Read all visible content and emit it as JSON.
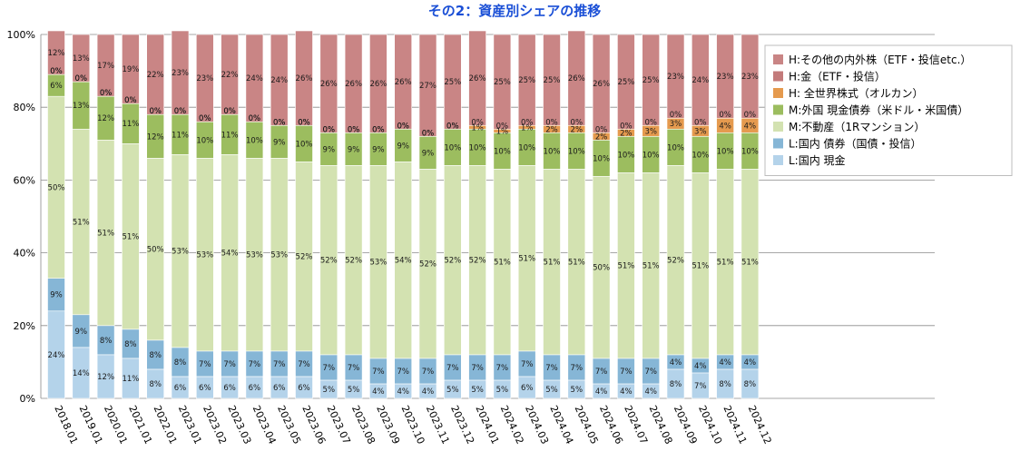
{
  "chart_data": {
    "type": "bar",
    "stacked": true,
    "title": "その2：資産別シェアの推移",
    "ylim": [
      0,
      100
    ],
    "yticks": [
      "0%",
      "20%",
      "40%",
      "60%",
      "80%",
      "100%"
    ],
    "categories": [
      "2018.01",
      "2019.01",
      "2020.01",
      "2021.01",
      "2022.01",
      "2023.01",
      "2023.02",
      "2023.03",
      "2023.04",
      "2023.05",
      "2023.06",
      "2023.07",
      "2023.08",
      "2023.09",
      "2023.10",
      "2023.11",
      "2023.12",
      "2024.01",
      "2024.02",
      "2024.03",
      "2024.04",
      "2024.05",
      "2024.06",
      "2024.07",
      "2024.08",
      "2024.09",
      "2024.10",
      "2024.11",
      "2024.12"
    ],
    "series": [
      {
        "name": "L:国内 現金",
        "color": "#b4d3ea",
        "values": [
          24,
          14,
          12,
          11,
          8,
          6,
          6,
          6,
          6,
          6,
          6,
          5,
          5,
          4,
          4,
          4,
          5,
          5,
          5,
          6,
          5,
          5,
          4,
          4,
          4,
          8,
          7,
          8,
          8
        ]
      },
      {
        "name": "L:国内 債券（国債・投信）",
        "color": "#86b6d6",
        "values": [
          9,
          9,
          8,
          8,
          8,
          8,
          7,
          7,
          7,
          7,
          7,
          7,
          7,
          7,
          7,
          7,
          7,
          7,
          7,
          7,
          7,
          7,
          7,
          7,
          7,
          4,
          4,
          4,
          4
        ]
      },
      {
        "name": "M:不動産（1Rマンション）",
        "color": "#d3e2b1",
        "values": [
          50,
          51,
          51,
          51,
          50,
          53,
          53,
          54,
          53,
          53,
          52,
          52,
          52,
          53,
          54,
          52,
          52,
          52,
          51,
          51,
          51,
          51,
          50,
          51,
          51,
          52,
          51,
          51,
          51
        ]
      },
      {
        "name": "M:外国 現金債券（米ドル・米国債）",
        "color": "#9cbd5f",
        "values": [
          6,
          13,
          12,
          11,
          12,
          11,
          10,
          11,
          10,
          9,
          10,
          9,
          9,
          9,
          9,
          9,
          10,
          10,
          10,
          10,
          10,
          10,
          10,
          10,
          10,
          10,
          10,
          10,
          10
        ]
      },
      {
        "name": "H: 全世界株式（オルカン）",
        "color": "#e59a4e",
        "values": [
          0,
          0,
          0,
          0,
          0,
          0,
          0,
          0,
          0,
          0,
          0,
          0,
          0,
          0,
          0,
          0,
          0,
          1,
          1,
          1,
          2,
          2,
          2,
          2,
          3,
          3,
          3,
          4,
          4
        ]
      },
      {
        "name": "H:金（ETF・投信）",
        "color": "#c37a7a",
        "values": [
          0,
          0,
          0,
          0,
          0,
          0,
          0,
          0,
          0,
          0,
          0,
          0,
          0,
          0,
          0,
          0,
          0,
          0,
          0,
          0,
          0,
          0,
          0,
          0,
          0,
          0,
          0,
          0,
          0
        ]
      },
      {
        "name": "H:その他の内外株（ETF・投信etc.）",
        "color": "#c98585",
        "values": [
          12,
          13,
          17,
          19,
          22,
          23,
          23,
          22,
          24,
          24,
          26,
          26,
          26,
          26,
          26,
          27,
          25,
          26,
          25,
          25,
          25,
          26,
          26,
          25,
          25,
          23,
          24,
          23,
          23
        ]
      }
    ],
    "legend": {
      "placement": "right",
      "order": [
        "H:その他の内外株（ETF・投信etc.）",
        "H:金（ETF・投信）",
        "H: 全世界株式（オルカン）",
        "M:外国 現金債券（米ドル・米国債）",
        "M:不動産（1Rマンション）",
        "L:国内 債券（国債・投信）",
        "L:国内 現金"
      ]
    },
    "grid": true
  }
}
